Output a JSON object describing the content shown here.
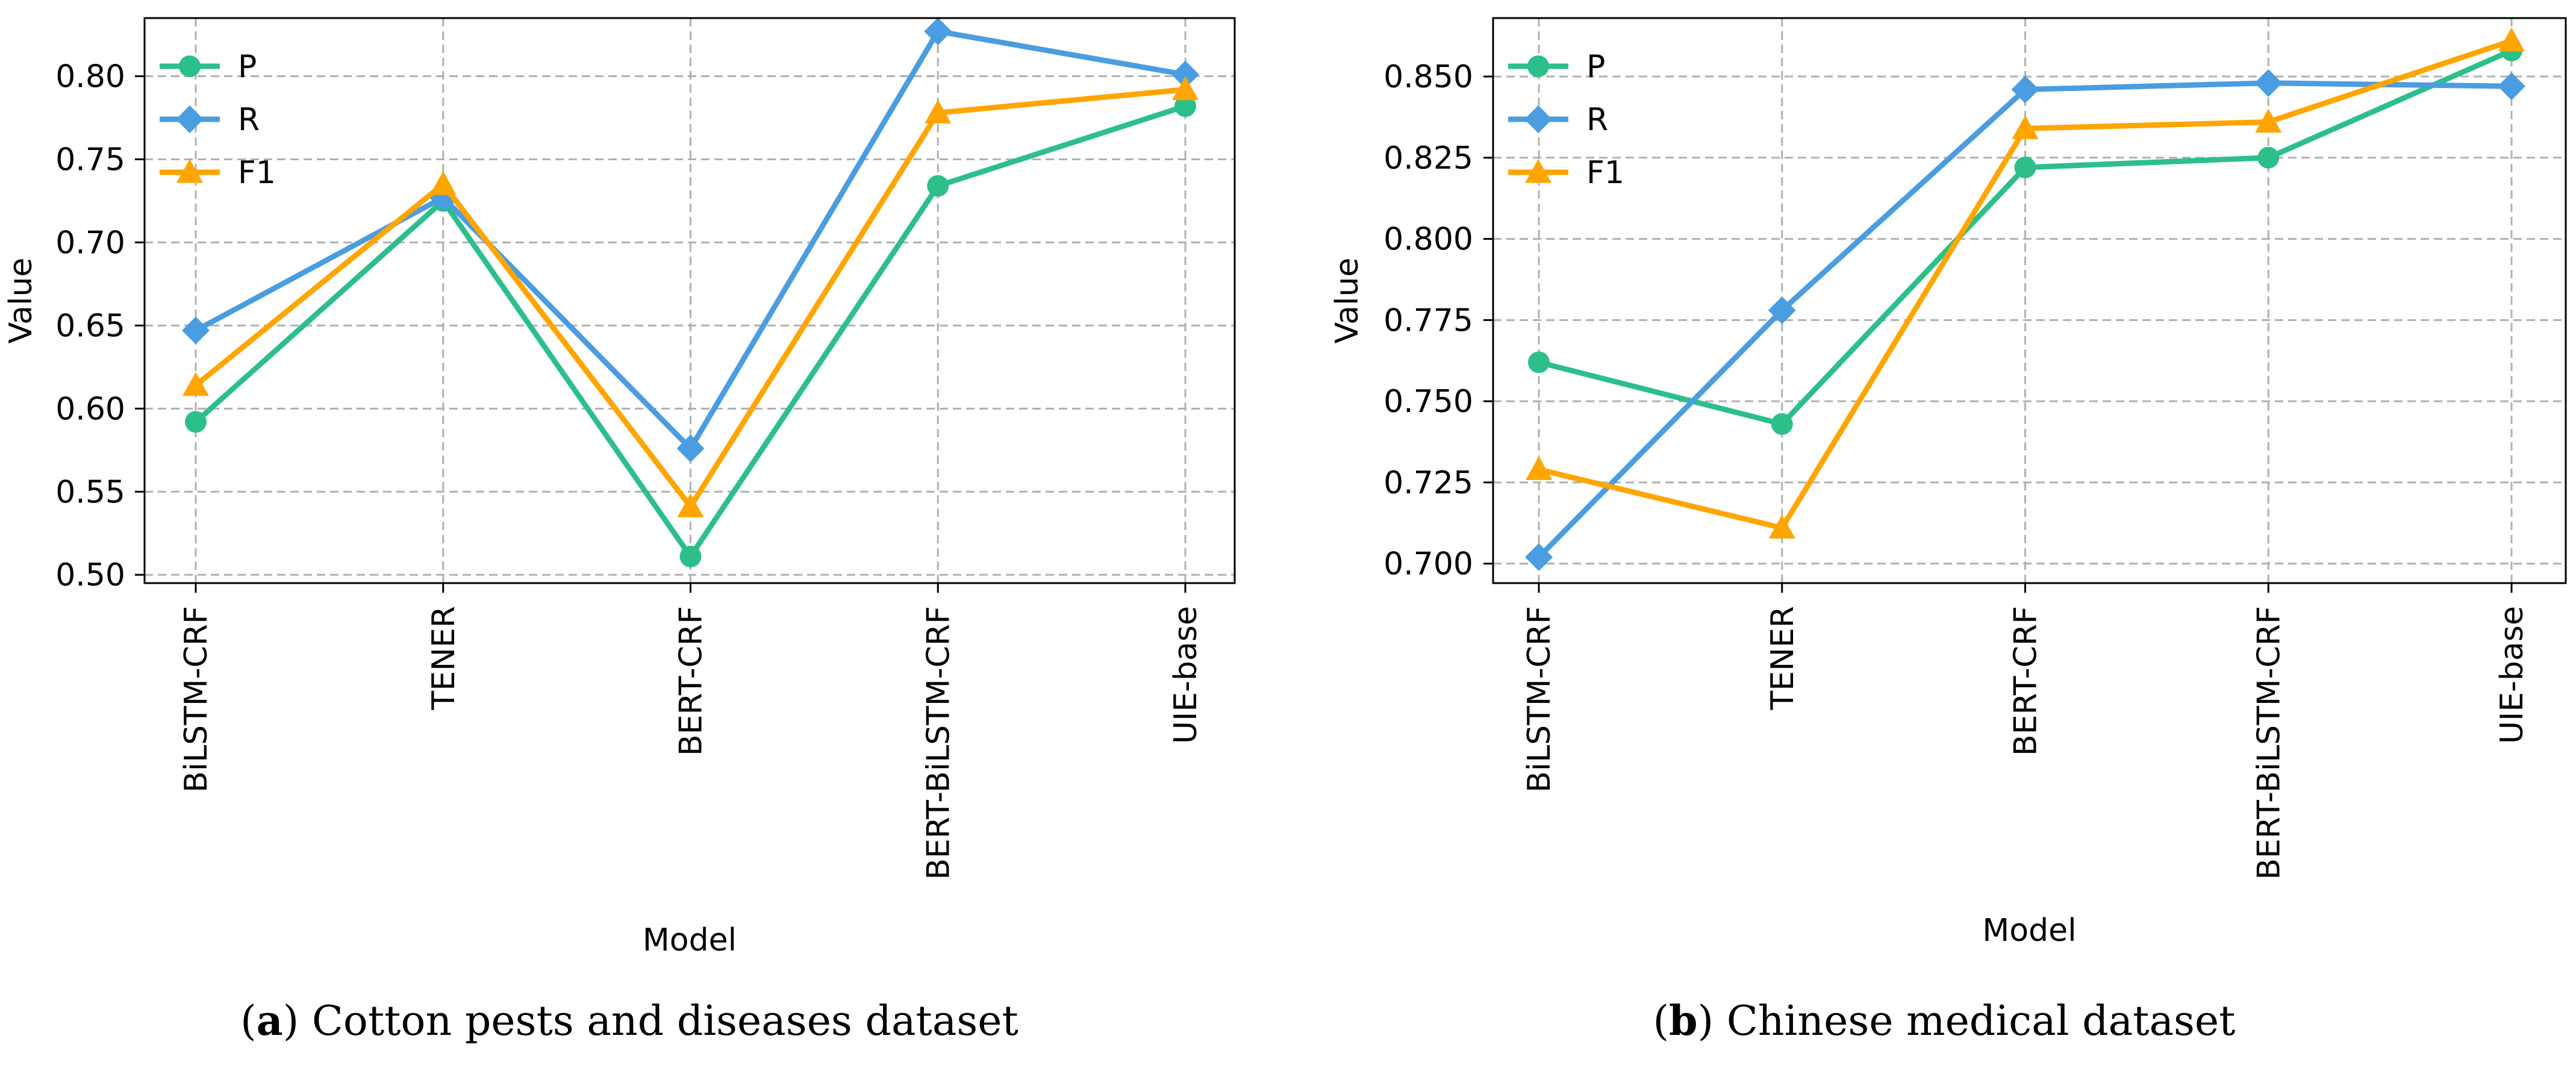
{
  "chart_data": [
    {
      "type": "line",
      "panel_letter": "a",
      "caption_paren_open": "(",
      "caption_paren_close": ")",
      "caption_text": " Cotton pests and diseases dataset",
      "xlabel": "Model",
      "ylabel": "Value",
      "categories": [
        "BiLSTM-CRF",
        "TENER",
        "BERT-CRF",
        "BERT-BiLSTM-CRF",
        "UIE-base"
      ],
      "ylim": [
        0.495,
        0.835
      ],
      "yticks": [
        0.5,
        0.55,
        0.6,
        0.65,
        0.7,
        0.75,
        0.8
      ],
      "ytick_labels": [
        "0.50",
        "0.55",
        "0.60",
        "0.65",
        "0.70",
        "0.75",
        "0.80"
      ],
      "grid": true,
      "legend": "top-left",
      "series": [
        {
          "name": "P",
          "color": "#2dbf8a",
          "marker": "circle",
          "values": [
            0.592,
            0.725,
            0.511,
            0.734,
            0.782
          ]
        },
        {
          "name": "R",
          "color": "#4a9de0",
          "marker": "diamond",
          "values": [
            0.647,
            0.727,
            0.576,
            0.827,
            0.801
          ]
        },
        {
          "name": "F1",
          "color": "#ffa500",
          "marker": "triangle",
          "values": [
            0.614,
            0.735,
            0.541,
            0.778,
            0.792
          ]
        }
      ]
    },
    {
      "type": "line",
      "panel_letter": "b",
      "caption_paren_open": "(",
      "caption_paren_close": ")",
      "caption_text": " Chinese medical dataset",
      "xlabel": "Model",
      "ylabel": "Value",
      "categories": [
        "BiLSTM-CRF",
        "TENER",
        "BERT-CRF",
        "BERT-BiLSTM-CRF",
        "UIE-base"
      ],
      "ylim": [
        0.694,
        0.868
      ],
      "yticks": [
        0.7,
        0.725,
        0.75,
        0.775,
        0.8,
        0.825,
        0.85
      ],
      "ytick_labels": [
        "0.700",
        "0.725",
        "0.750",
        "0.775",
        "0.800",
        "0.825",
        "0.850"
      ],
      "grid": true,
      "legend": "top-left",
      "series": [
        {
          "name": "P",
          "color": "#2dbf8a",
          "marker": "circle",
          "values": [
            0.762,
            0.743,
            0.822,
            0.825,
            0.858
          ]
        },
        {
          "name": "R",
          "color": "#4a9de0",
          "marker": "diamond",
          "values": [
            0.702,
            0.778,
            0.846,
            0.848,
            0.847
          ]
        },
        {
          "name": "F1",
          "color": "#ffa500",
          "marker": "triangle",
          "values": [
            0.729,
            0.711,
            0.834,
            0.836,
            0.861
          ]
        }
      ]
    }
  ]
}
